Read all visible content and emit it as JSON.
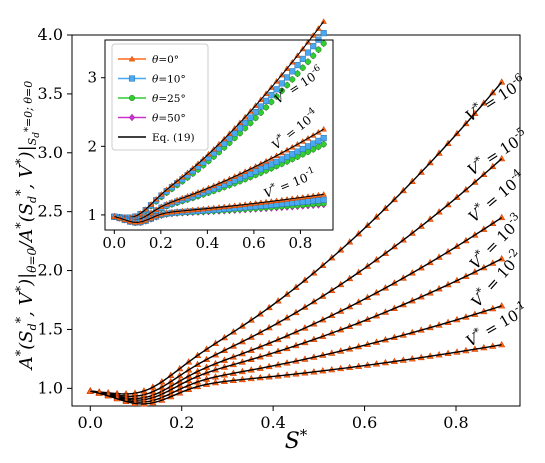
{
  "chart_data": [
    {
      "type": "line",
      "role": "main",
      "xlabel": "S*",
      "ylabel": "A*(S_d*, V*)|θ=0 / A*(S_d*, V*)|S_d*=0; θ=0",
      "xlim": [
        -0.04,
        0.94
      ],
      "ylim": [
        0.85,
        4.0
      ],
      "xticks": [
        "0.0",
        "0.2",
        "0.4",
        "0.6",
        "0.8"
      ],
      "yticks": [
        "1.0",
        "1.5",
        "2.0",
        "2.5",
        "3.0",
        "3.5",
        "4.0"
      ],
      "marker_series": "θ=0°",
      "marker_color": "#ff6a1a",
      "line_color": "#000000",
      "series": [
        {
          "label": "V* = 10^-6",
          "a": 0.0,
          "b": 4.0,
          "c": -6.8,
          "d": 5.85,
          "p": 0.052,
          "y_end": 3.6
        },
        {
          "label": "V* = 10^-5",
          "a": 0.0,
          "b": 2.5,
          "c": -3.8,
          "d": 3.75,
          "p": 0.056,
          "y_end": 2.95
        },
        {
          "label": "V* = 10^-4",
          "a": 0.0,
          "b": 1.4,
          "c": -1.7,
          "d": 2.45,
          "p": 0.06,
          "y_end": 2.45
        },
        {
          "label": "V* = 10^-3",
          "a": 0.0,
          "b": 0.8,
          "c": -0.85,
          "d": 1.75,
          "p": 0.06,
          "y_end": 2.1
        },
        {
          "label": "V* = 10^-2",
          "a": 0.0,
          "b": 0.4,
          "c": -0.4,
          "d": 1.15,
          "p": 0.06,
          "y_end": 1.7
        },
        {
          "label": "V* = 10^-1",
          "a": 0.0,
          "b": 0.1,
          "c": -0.3,
          "d": 0.85,
          "p": 0.065,
          "y_end": 1.37
        }
      ]
    },
    {
      "type": "line",
      "role": "inset",
      "xlim": [
        -0.04,
        0.94
      ],
      "ylim": [
        0.78,
        3.55
      ],
      "xticks": [
        "0.0",
        "0.2",
        "0.4",
        "0.6",
        "0.8"
      ],
      "yticks": [
        "1",
        "2",
        "3"
      ],
      "legend": [
        {
          "label": "θ=0°",
          "marker": "triangle",
          "color": "#ff6a1a"
        },
        {
          "label": "θ=10°",
          "marker": "square",
          "color": "#4aa8f0"
        },
        {
          "label": "θ=25°",
          "marker": "circle",
          "color": "#33cc33"
        },
        {
          "label": "θ=50°",
          "marker": "diamond",
          "color": "#cc33cc"
        },
        {
          "label": "Eq. (19)",
          "marker": "line",
          "color": "#000000"
        }
      ],
      "groups": [
        {
          "label": "V* = 10^-6",
          "y_end": {
            "0": 3.82,
            "10": 3.65,
            "25": 3.5,
            "50": 3.5
          }
        },
        {
          "label": "V* = 10^-4",
          "y_end": {
            "0": 2.25,
            "10": 2.12,
            "25": 2.03,
            "50": 2.03
          }
        },
        {
          "label": "V* = 10^-1",
          "y_end": {
            "0": 1.3,
            "10": 1.22,
            "25": 1.17,
            "50": 1.15
          }
        }
      ]
    }
  ]
}
